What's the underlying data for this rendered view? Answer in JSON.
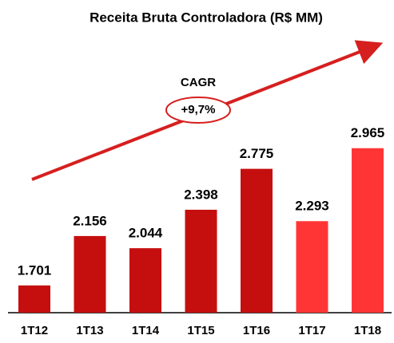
{
  "chart_data": {
    "type": "bar",
    "title": "Receita Bruta Controladora (R$ MM)",
    "categories": [
      "1T12",
      "1T13",
      "1T14",
      "1T15",
      "1T16",
      "1T17",
      "1T18"
    ],
    "values": [
      1701,
      2156,
      2044,
      2398,
      2775,
      2293,
      2965
    ],
    "value_labels": [
      "1.701",
      "2.156",
      "2.044",
      "2.398",
      "2.775",
      "2.293",
      "2.965"
    ],
    "colors": [
      "#c50f0f",
      "#c50f0f",
      "#c50f0f",
      "#c50f0f",
      "#c50f0f",
      "#ff3535",
      "#ff3535"
    ],
    "ylim": [
      1450,
      3000
    ],
    "annotations": [
      "CAGR",
      "+9,7%"
    ]
  }
}
